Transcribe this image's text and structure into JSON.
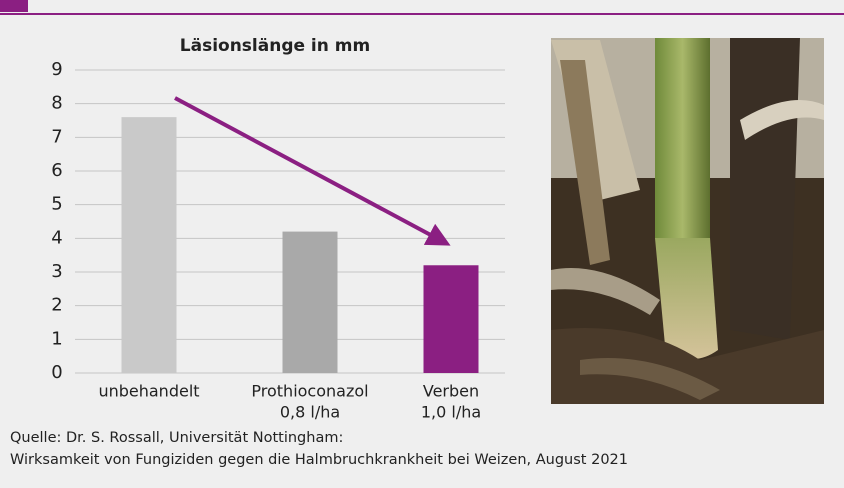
{
  "chart_data": {
    "type": "bar",
    "title": "Läsionslänge in mm",
    "categories": [
      [
        "unbehandelt"
      ],
      [
        "Prothioconazol",
        "0,8 l/ha"
      ],
      [
        "Verben",
        "1,0 l/ha"
      ]
    ],
    "values": [
      7.6,
      4.2,
      3.2
    ],
    "colors": [
      "#c9c9c9",
      "#a9a9a9",
      "#8b1f82"
    ],
    "ylim": [
      0,
      9
    ],
    "yticks": [
      0,
      1,
      2,
      3,
      4,
      5,
      6,
      7,
      8,
      9
    ],
    "grid": true,
    "source": [
      "Quelle: Dr. S. Rossall, Universität Nottingham:",
      "Wirksamkeit von Fungiziden gegen die Halmbruchkrankheit bei Weizen, August 2021"
    ]
  }
}
